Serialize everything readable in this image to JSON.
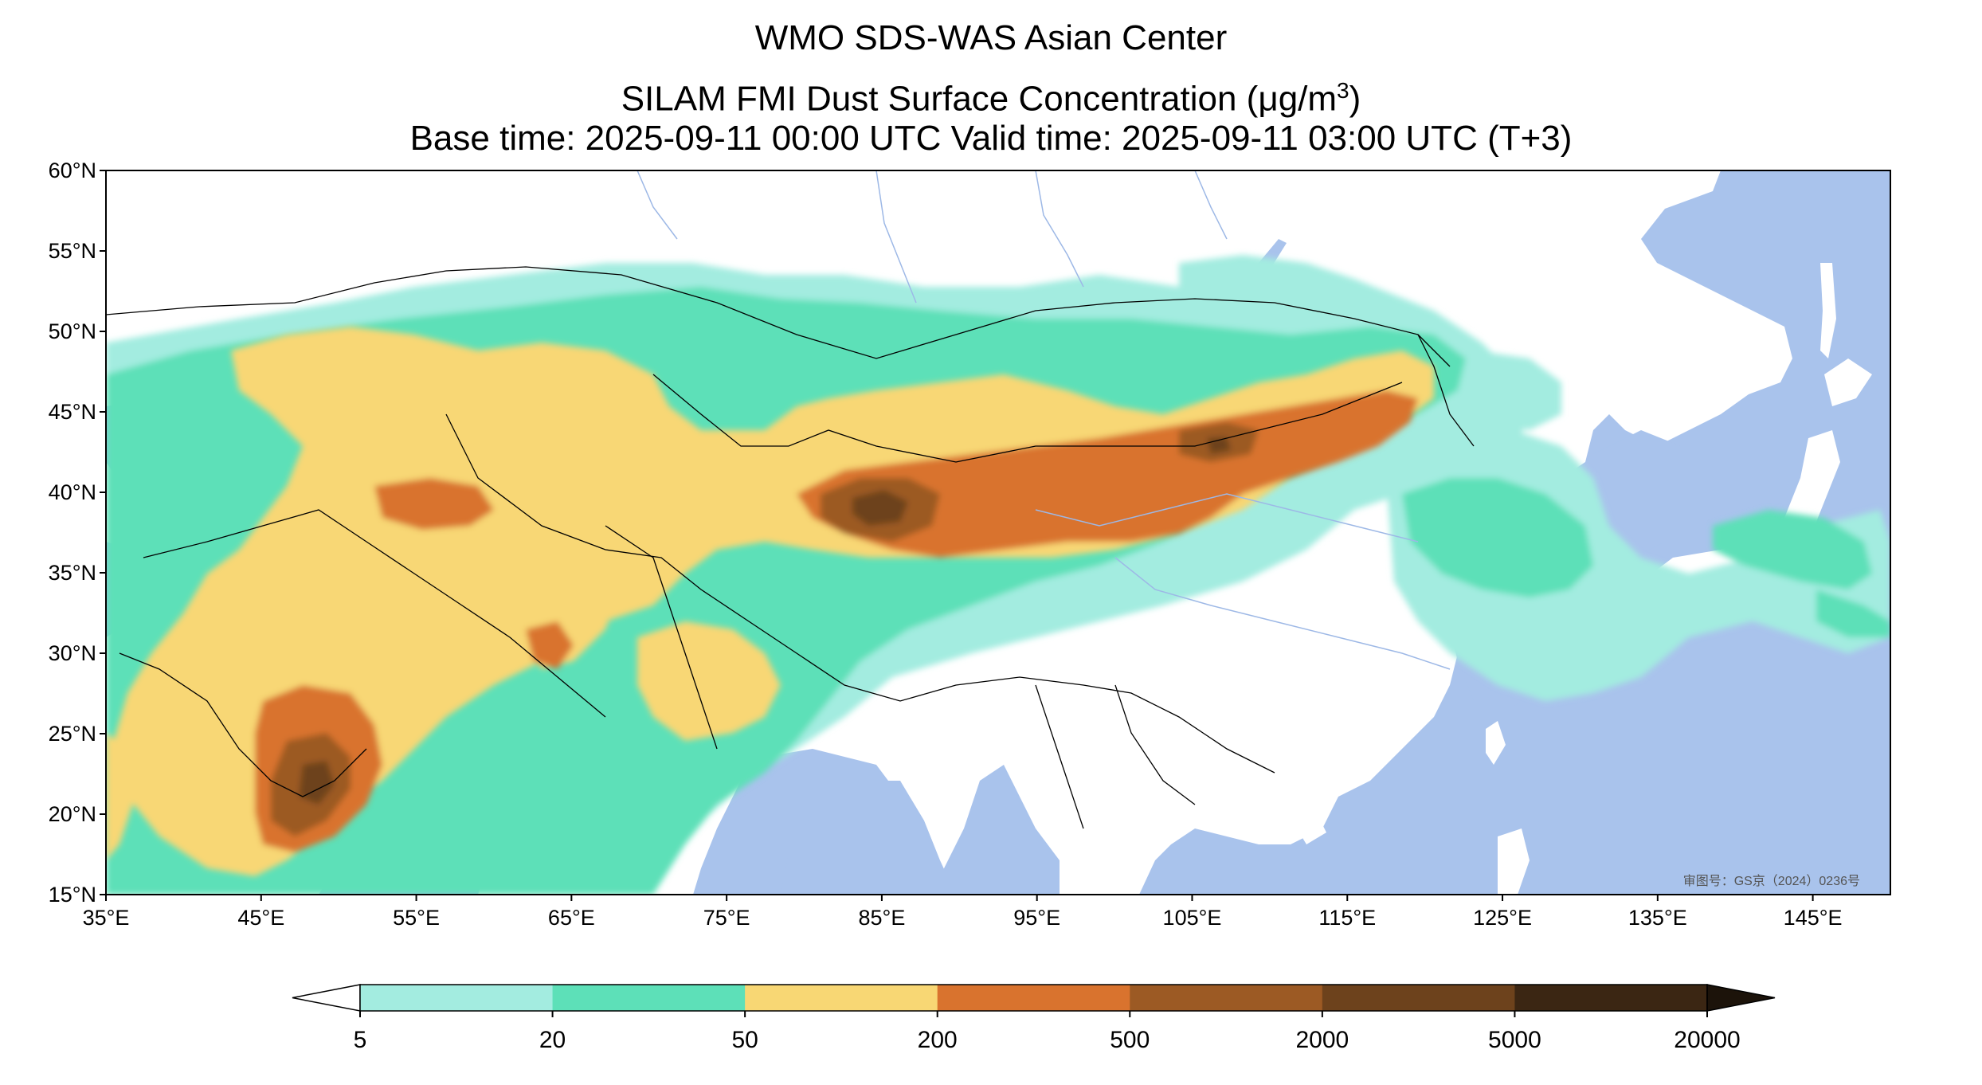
{
  "title": {
    "line1": "WMO SDS-WAS Asian Center",
    "line2_prefix": "SILAM FMI Dust Surface Concentration (",
    "line2_unit": "μg/m",
    "line2_sup": "3",
    "line2_suffix": ")",
    "line3": "Base time: 2025-09-11 00:00 UTC Valid time: 2025-09-11 03:00 UTC (T+3)"
  },
  "map": {
    "lon_range": [
      35,
      150
    ],
    "lat_range": [
      15,
      60
    ],
    "lon_ticks": [
      "35°E",
      "45°E",
      "55°E",
      "65°E",
      "75°E",
      "85°E",
      "95°E",
      "105°E",
      "115°E",
      "125°E",
      "135°E",
      "145°E"
    ],
    "lat_ticks": [
      "60°N",
      "55°N",
      "50°N",
      "45°N",
      "40°N",
      "35°N",
      "30°N",
      "25°N",
      "20°N",
      "15°N"
    ],
    "watermark": "审图号：GS京（2024）0236号",
    "colors": {
      "ocean": "#a9c3ec",
      "land": "#ffffff",
      "level_5": "#a3ece0",
      "level_20": "#5de0b8",
      "level_50": "#f8d774",
      "level_200": "#d9732e",
      "level_500": "#9c5a24",
      "level_2000": "#6d421c",
      "level_5000": "#3b2613"
    }
  },
  "colorbar": {
    "levels": [
      "5",
      "20",
      "50",
      "200",
      "500",
      "2000",
      "5000",
      "20000"
    ],
    "colors": [
      "#a3ece0",
      "#5de0b8",
      "#f8d774",
      "#d9732e",
      "#9c5a24",
      "#6d421c",
      "#3b2613"
    ],
    "extend_low_color": "#ffffff",
    "extend_high_color": "#1c130a"
  }
}
